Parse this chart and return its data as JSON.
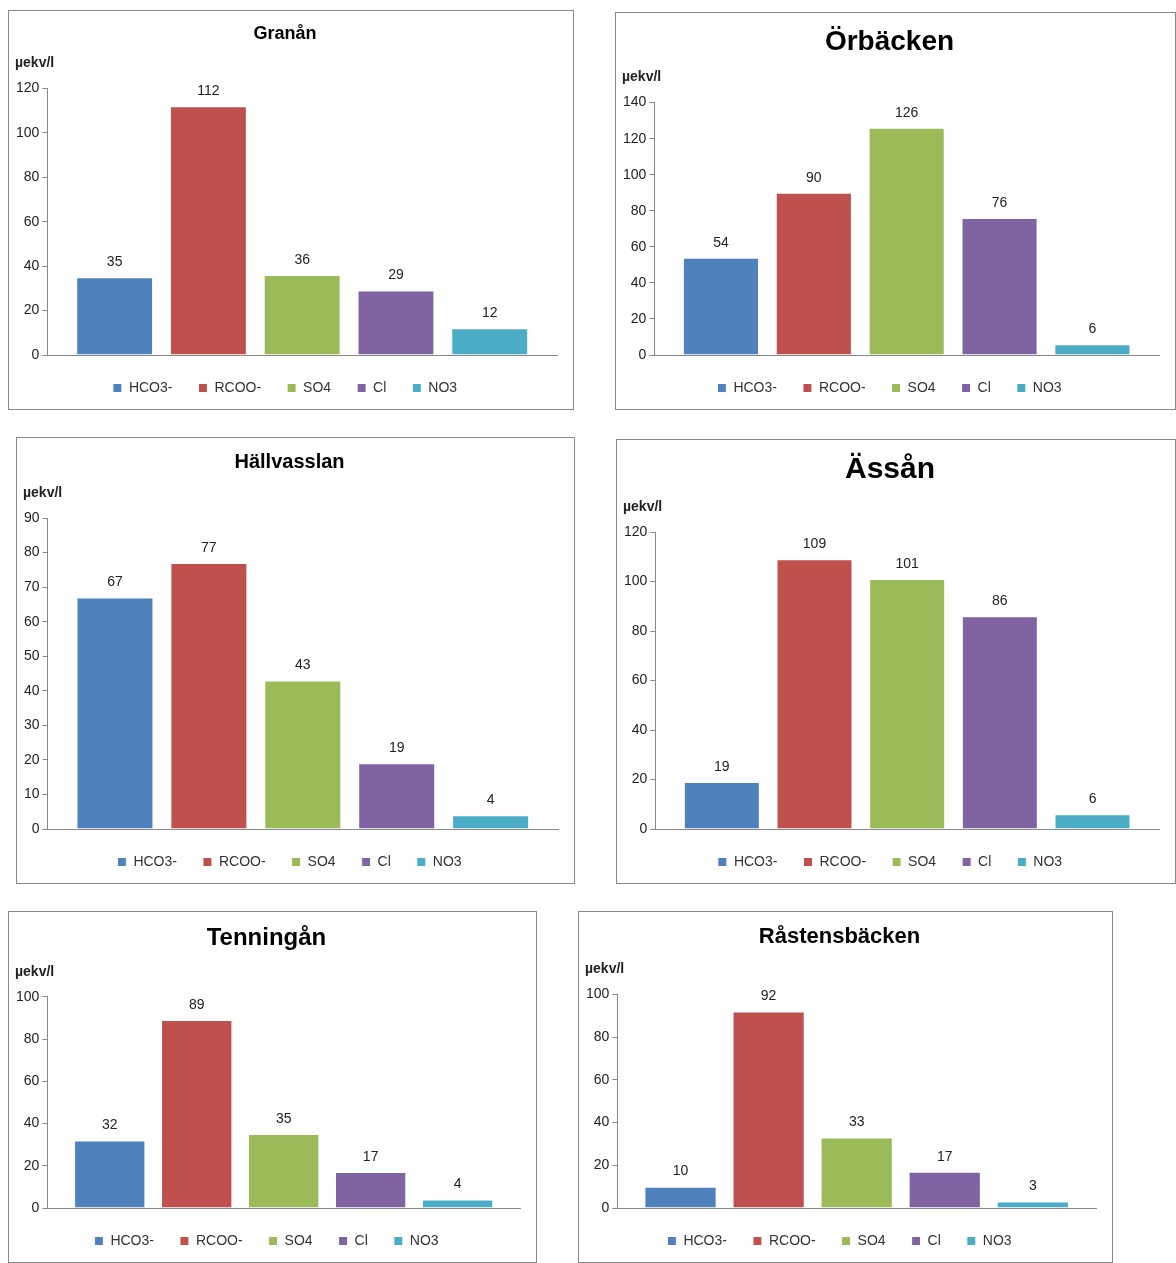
{
  "chart_data": [
    {
      "type": "bar",
      "title": "Granån",
      "ylabel": "µekv/l",
      "categories": [
        null
      ],
      "ylim": [
        0,
        120
      ],
      "yticks": [
        0,
        20,
        40,
        60,
        80,
        100,
        120
      ],
      "grid": false,
      "legend": "bottom",
      "data_labels": true,
      "series": [
        {
          "name": "HCO3-",
          "color": "#4f81bd",
          "values": [
            35
          ]
        },
        {
          "name": "RCOO-",
          "color": "#c0504d",
          "values": [
            112
          ]
        },
        {
          "name": "SO4",
          "color": "#9bbb59",
          "values": [
            36
          ]
        },
        {
          "name": "Cl",
          "color": "#8064a2",
          "values": [
            29
          ]
        },
        {
          "name": "NO3",
          "color": "#4bacc6",
          "values": [
            12
          ]
        }
      ]
    },
    {
      "type": "bar",
      "title": "Örbäcken",
      "ylabel": "µekv/l",
      "categories": [
        null
      ],
      "ylim": [
        0,
        140
      ],
      "yticks": [
        0,
        20,
        40,
        60,
        80,
        100,
        120,
        140
      ],
      "grid": false,
      "legend": "bottom",
      "data_labels": true,
      "series": [
        {
          "name": "HCO3-",
          "color": "#4f81bd",
          "values": [
            54
          ]
        },
        {
          "name": "RCOO-",
          "color": "#c0504d",
          "values": [
            90
          ]
        },
        {
          "name": "SO4",
          "color": "#9bbb59",
          "values": [
            126
          ]
        },
        {
          "name": "Cl",
          "color": "#8064a2",
          "values": [
            76
          ]
        },
        {
          "name": "NO3",
          "color": "#4bacc6",
          "values": [
            6
          ]
        }
      ]
    },
    {
      "type": "bar",
      "title": "Hällvasslan",
      "ylabel": "µekv/l",
      "categories": [
        null
      ],
      "ylim": [
        0,
        90
      ],
      "yticks": [
        0,
        10,
        20,
        30,
        40,
        50,
        60,
        70,
        80,
        90
      ],
      "grid": false,
      "legend": "bottom",
      "data_labels": true,
      "series": [
        {
          "name": "HCO3-",
          "color": "#4f81bd",
          "values": [
            67
          ]
        },
        {
          "name": "RCOO-",
          "color": "#c0504d",
          "values": [
            77
          ]
        },
        {
          "name": "SO4",
          "color": "#9bbb59",
          "values": [
            43
          ]
        },
        {
          "name": "Cl",
          "color": "#8064a2",
          "values": [
            19
          ]
        },
        {
          "name": "NO3",
          "color": "#4bacc6",
          "values": [
            4
          ]
        }
      ]
    },
    {
      "type": "bar",
      "title": "Ässån",
      "ylabel": "µekv/l",
      "categories": [
        null
      ],
      "ylim": [
        0,
        120
      ],
      "yticks": [
        0,
        20,
        40,
        60,
        80,
        100,
        120
      ],
      "grid": false,
      "legend": "bottom",
      "data_labels": true,
      "series": [
        {
          "name": "HCO3-",
          "color": "#4f81bd",
          "values": [
            19
          ]
        },
        {
          "name": "RCOO-",
          "color": "#c0504d",
          "values": [
            109
          ]
        },
        {
          "name": "SO4",
          "color": "#9bbb59",
          "values": [
            101
          ]
        },
        {
          "name": "Cl",
          "color": "#8064a2",
          "values": [
            86
          ]
        },
        {
          "name": "NO3",
          "color": "#4bacc6",
          "values": [
            6
          ]
        }
      ]
    },
    {
      "type": "bar",
      "title": "Tenningån",
      "ylabel": "µekv/l",
      "categories": [
        null
      ],
      "ylim": [
        0,
        100
      ],
      "yticks": [
        0,
        20,
        40,
        60,
        80,
        100
      ],
      "grid": false,
      "legend": "bottom",
      "data_labels": true,
      "series": [
        {
          "name": "HCO3-",
          "color": "#4f81bd",
          "values": [
            32
          ]
        },
        {
          "name": "RCOO-",
          "color": "#c0504d",
          "values": [
            89
          ]
        },
        {
          "name": "SO4",
          "color": "#9bbb59",
          "values": [
            35
          ]
        },
        {
          "name": "Cl",
          "color": "#8064a2",
          "values": [
            17
          ]
        },
        {
          "name": "NO3",
          "color": "#4bacc6",
          "values": [
            4
          ]
        }
      ]
    },
    {
      "type": "bar",
      "title": "Råstensbäcken",
      "ylabel": "µekv/l",
      "categories": [
        null
      ],
      "ylim": [
        0,
        100
      ],
      "yticks": [
        0,
        20,
        40,
        60,
        80,
        100
      ],
      "grid": false,
      "legend": "bottom",
      "data_labels": true,
      "series": [
        {
          "name": "HCO3-",
          "color": "#4f81bd",
          "values": [
            10
          ]
        },
        {
          "name": "RCOO-",
          "color": "#c0504d",
          "values": [
            92
          ]
        },
        {
          "name": "SO4",
          "color": "#9bbb59",
          "values": [
            33
          ]
        },
        {
          "name": "Cl",
          "color": "#8064a2",
          "values": [
            17
          ]
        },
        {
          "name": "NO3",
          "color": "#4bacc6",
          "values": [
            3
          ]
        }
      ]
    }
  ]
}
